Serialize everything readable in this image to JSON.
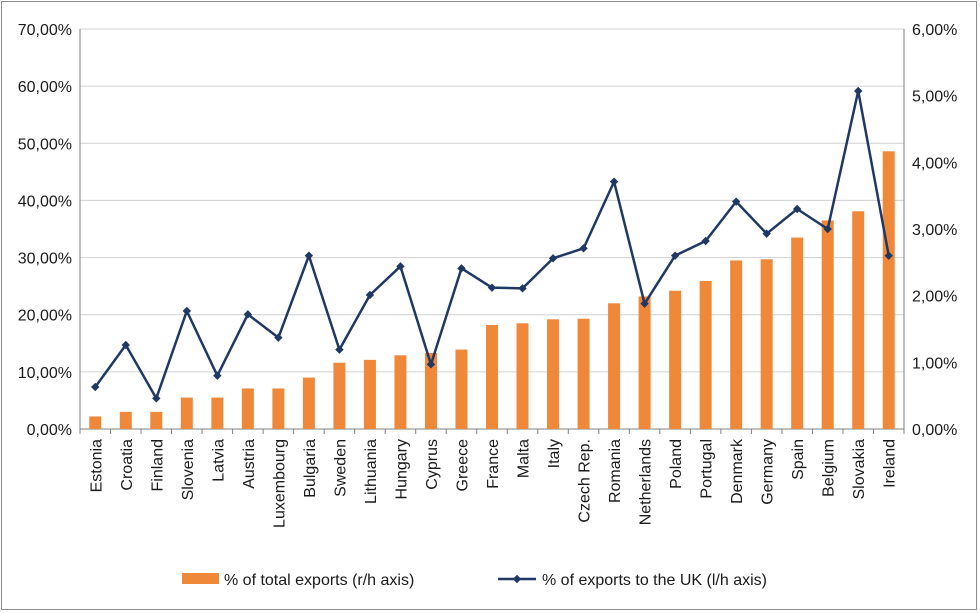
{
  "chart_data": {
    "type": "bar+line",
    "title": "",
    "categories": [
      "Estonia",
      "Croatia",
      "Finland",
      "Slovenia",
      "Latvia",
      "Austria",
      "Luxembourg",
      "Bulgaria",
      "Sweden",
      "Lithuania",
      "Hungary",
      "Cyprus",
      "Greece",
      "France",
      "Malta",
      "Italy",
      "Czech Rep.",
      "Romania",
      "Netherlands",
      "Poland",
      "Portugal",
      "Denmark",
      "Germany",
      "Spain",
      "Belgium",
      "Slovakia",
      "Ireland"
    ],
    "series": [
      {
        "name": "% of total exports (r/h axis)",
        "type": "bar",
        "axis": "left",
        "color": "#f0883a",
        "values": [
          2.2,
          3.0,
          3.0,
          5.5,
          5.5,
          7.1,
          7.1,
          9.0,
          11.6,
          12.1,
          12.9,
          13.3,
          13.9,
          18.2,
          18.5,
          19.2,
          19.3,
          22.0,
          23.2,
          24.2,
          25.9,
          29.5,
          29.7,
          33.5,
          36.5,
          38.1,
          48.6
        ]
      },
      {
        "name": "% of exports to the UK (l/h axis)",
        "type": "line",
        "axis": "right",
        "color": "#1f3864",
        "values": [
          0.63,
          1.26,
          0.46,
          1.77,
          0.8,
          1.72,
          1.37,
          2.6,
          1.19,
          2.01,
          2.44,
          0.97,
          2.41,
          2.12,
          2.11,
          2.56,
          2.71,
          3.71,
          1.88,
          2.6,
          2.82,
          3.41,
          2.93,
          3.3,
          3.0,
          5.07,
          2.6
        ]
      }
    ],
    "left_axis": {
      "min": 0,
      "max": 70,
      "step": 10,
      "tick_labels": [
        "0,00%",
        "10,00%",
        "20,00%",
        "30,00%",
        "40,00%",
        "50,00%",
        "60,00%",
        "70,00%"
      ]
    },
    "right_axis": {
      "min": 0,
      "max": 6,
      "step": 1,
      "tick_labels": [
        "0,00%",
        "1,00%",
        "2,00%",
        "3,00%",
        "4,00%",
        "5,00%",
        "6,00%"
      ]
    },
    "legend": {
      "position": "bottom"
    },
    "grid": true
  }
}
